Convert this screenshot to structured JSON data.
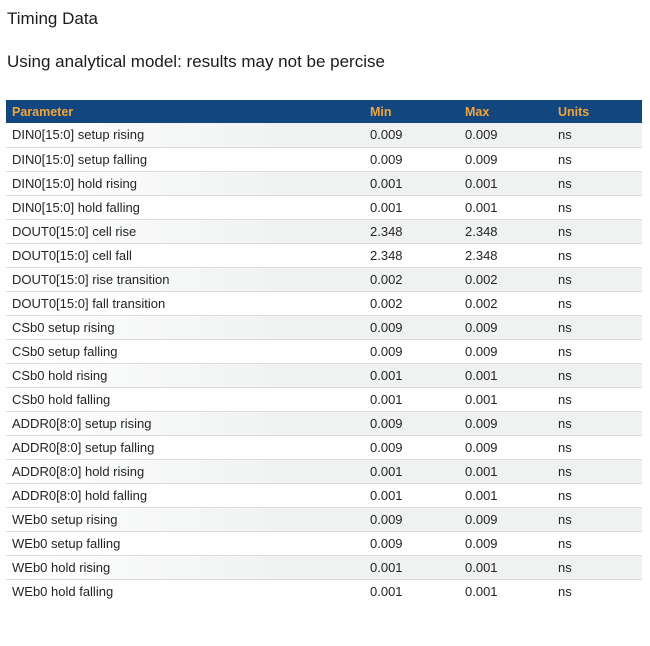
{
  "page": {
    "title": "Timing Data",
    "subtitle": "Using analytical model: results may not be percise"
  },
  "colors": {
    "header_bg": "#11467f",
    "header_text": "#f0a43d",
    "title_text": "#1b1b1b",
    "body_text": "#242424",
    "row_alt_bg": "#f0f2f2",
    "row_border": "#d9dbdb"
  },
  "table": {
    "columns": [
      {
        "key": "parameter",
        "label": "Parameter"
      },
      {
        "key": "min",
        "label": "Min"
      },
      {
        "key": "max",
        "label": "Max"
      },
      {
        "key": "units",
        "label": "Units"
      }
    ],
    "rows": [
      {
        "parameter": "DIN0[15:0] setup rising",
        "min": "0.009",
        "max": "0.009",
        "units": "ns"
      },
      {
        "parameter": "DIN0[15:0] setup falling",
        "min": "0.009",
        "max": "0.009",
        "units": "ns"
      },
      {
        "parameter": "DIN0[15:0] hold rising",
        "min": "0.001",
        "max": "0.001",
        "units": "ns"
      },
      {
        "parameter": "DIN0[15:0] hold falling",
        "min": "0.001",
        "max": "0.001",
        "units": "ns"
      },
      {
        "parameter": "DOUT0[15:0] cell rise",
        "min": "2.348",
        "max": "2.348",
        "units": "ns"
      },
      {
        "parameter": "DOUT0[15:0] cell fall",
        "min": "2.348",
        "max": "2.348",
        "units": "ns"
      },
      {
        "parameter": "DOUT0[15:0] rise transition",
        "min": "0.002",
        "max": "0.002",
        "units": "ns"
      },
      {
        "parameter": "DOUT0[15:0] fall transition",
        "min": "0.002",
        "max": "0.002",
        "units": "ns"
      },
      {
        "parameter": "CSb0 setup rising",
        "min": "0.009",
        "max": "0.009",
        "units": "ns"
      },
      {
        "parameter": "CSb0 setup falling",
        "min": "0.009",
        "max": "0.009",
        "units": "ns"
      },
      {
        "parameter": "CSb0 hold rising",
        "min": "0.001",
        "max": "0.001",
        "units": "ns"
      },
      {
        "parameter": "CSb0 hold falling",
        "min": "0.001",
        "max": "0.001",
        "units": "ns"
      },
      {
        "parameter": "ADDR0[8:0] setup rising",
        "min": "0.009",
        "max": "0.009",
        "units": "ns"
      },
      {
        "parameter": "ADDR0[8:0] setup falling",
        "min": "0.009",
        "max": "0.009",
        "units": "ns"
      },
      {
        "parameter": "ADDR0[8:0] hold rising",
        "min": "0.001",
        "max": "0.001",
        "units": "ns"
      },
      {
        "parameter": "ADDR0[8:0] hold falling",
        "min": "0.001",
        "max": "0.001",
        "units": "ns"
      },
      {
        "parameter": "WEb0 setup rising",
        "min": "0.009",
        "max": "0.009",
        "units": "ns"
      },
      {
        "parameter": "WEb0 setup falling",
        "min": "0.009",
        "max": "0.009",
        "units": "ns"
      },
      {
        "parameter": "WEb0 hold rising",
        "min": "0.001",
        "max": "0.001",
        "units": "ns"
      },
      {
        "parameter": "WEb0 hold falling",
        "min": "0.001",
        "max": "0.001",
        "units": "ns"
      }
    ]
  }
}
